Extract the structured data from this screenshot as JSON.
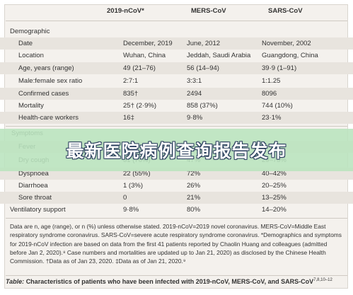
{
  "headers": [
    "2019-nCoV*",
    "MERS-CoV",
    "SARS-CoV"
  ],
  "rows": [
    {
      "label": "Demographic",
      "v": [
        "",
        "",
        ""
      ]
    },
    {
      "label": "Date",
      "v": [
        "December, 2019",
        "June, 2012",
        "November, 2002"
      ]
    },
    {
      "label": "Location",
      "v": [
        "Wuhan, China",
        "Jeddah, Saudi Arabia",
        "Guangdong, China"
      ]
    },
    {
      "label": "Age, years (range)",
      "v": [
        "49 (21–76)",
        "56 (14–94)",
        "39·9 (1–91)"
      ]
    },
    {
      "label": "Male:female sex ratio",
      "v": [
        "2:7:1",
        "3:3:1",
        "1:1.25"
      ]
    },
    {
      "label": "Confirmed cases",
      "v": [
        "835†",
        "2494",
        "8096"
      ]
    },
    {
      "label": "Mortality",
      "v": [
        "25† (2·9%)",
        "858 (37%)",
        "744 (10%)"
      ]
    },
    {
      "label": "Health-care workers",
      "v": [
        "16‡",
        "9·8%",
        "23·1%"
      ]
    }
  ],
  "symptoms_label": "Symptoms",
  "symptom_rows": [
    {
      "label": "Fever",
      "v": [
        "",
        "",
        ""
      ]
    },
    {
      "label": "Dry cough",
      "v": [
        "31 (76%)",
        "47%",
        "29–75%"
      ]
    },
    {
      "label": "Dyspnoea",
      "v": [
        "22 (55%)",
        "72%",
        "40–42%"
      ]
    },
    {
      "label": "Diarrhoea",
      "v": [
        "1 (3%)",
        "26%",
        "20–25%"
      ]
    },
    {
      "label": "Sore throat",
      "v": [
        "0",
        "21%",
        "13–25%"
      ]
    },
    {
      "label": "Ventilatory support",
      "v": [
        "9·8%",
        "80%",
        "14–20%"
      ]
    }
  ],
  "banner": "最新医院病例查询报告发布",
  "footnote": "Data are n, age (range), or n (%) unless otherwise stated. 2019-nCoV=2019 novel coronavirus. MERS-CoV=Middle East respiratory syndrome coronavirus. SARS-CoV=severe acute respiratory syndrome coronavirus. *Demographics and symptoms for 2019-nCoV infection are based on data from the first 41 patients reported by Chaolin Huang and colleagues (admitted before Jan 2, 2020).⁸ Case numbers and mortalities are updated up to Jan 21, 2020) as disclosed by the Chinese Health Commission. †Data as of Jan 23, 2020. ‡Data as of Jan 21, 2020.⁹",
  "caption_prefix": "Table:",
  "caption_text": "Characteristics of patients who have been infected with 2019-nCoV, MERS-CoV, and SARS-CoV",
  "caption_refs": "7,8,10–12"
}
